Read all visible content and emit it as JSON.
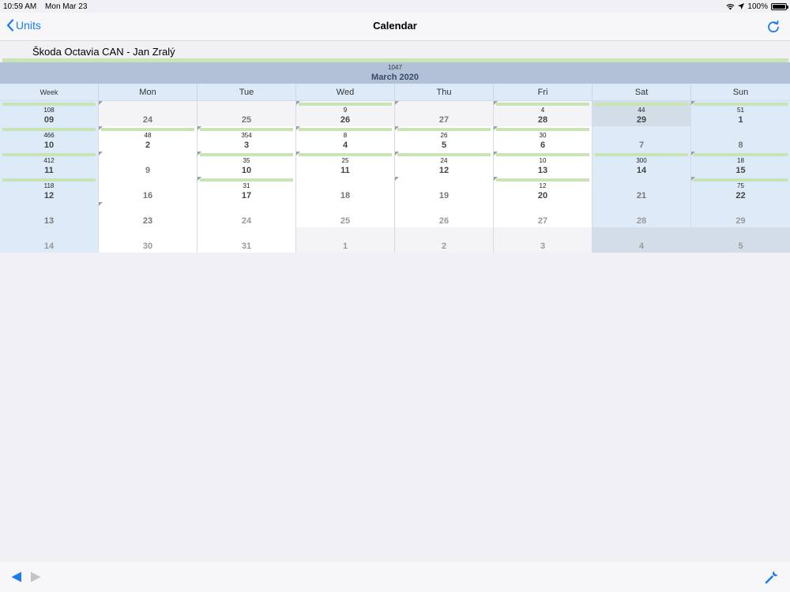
{
  "status": {
    "time": "10:59 AM",
    "date": "Mon Mar 23",
    "battery": "100%",
    "battery_level": 1.0
  },
  "nav": {
    "back_label": "Units",
    "title": "Calendar"
  },
  "unit": {
    "name": "Škoda Octavia CAN - Jan Zralý"
  },
  "month": {
    "total": "1047",
    "title": "March 2020"
  },
  "days_of_week": [
    "Week",
    "Mon",
    "Tue",
    "Wed",
    "Thu",
    "Fri",
    "Sat",
    "Sun"
  ],
  "weeks": [
    {
      "cells": [
        {
          "kind": "week",
          "day": "09",
          "count": "108",
          "bar": true
        },
        {
          "kind": "other",
          "day": "24",
          "count": "",
          "bar": false,
          "corner": true,
          "style": "muted"
        },
        {
          "kind": "other",
          "day": "25",
          "count": "",
          "bar": false,
          "style": "muted"
        },
        {
          "kind": "other",
          "day": "26",
          "count": "9",
          "bar": true,
          "corner": true
        },
        {
          "kind": "other",
          "day": "27",
          "count": "",
          "bar": false,
          "corner": true,
          "style": "muted"
        },
        {
          "kind": "other",
          "day": "28",
          "count": "4",
          "bar": true,
          "corner": true
        },
        {
          "kind": "other-weekend",
          "day": "29",
          "count": "44",
          "bar": true
        },
        {
          "kind": "weekend",
          "day": "1",
          "count": "51",
          "bar": true,
          "corner": true
        }
      ]
    },
    {
      "cells": [
        {
          "kind": "week",
          "day": "10",
          "count": "466",
          "bar": true
        },
        {
          "kind": "weekday",
          "day": "2",
          "count": "48",
          "bar": true,
          "corner": true
        },
        {
          "kind": "weekday",
          "day": "3",
          "count": "354",
          "bar": true,
          "corner": true
        },
        {
          "kind": "weekday",
          "day": "4",
          "count": "8",
          "bar": true,
          "corner": true
        },
        {
          "kind": "weekday",
          "day": "5",
          "count": "26",
          "bar": true,
          "corner": true
        },
        {
          "kind": "weekday",
          "day": "6",
          "count": "30",
          "bar": true,
          "corner": true
        },
        {
          "kind": "weekend",
          "day": "7",
          "count": "",
          "bar": false,
          "style": "muted"
        },
        {
          "kind": "weekend",
          "day": "8",
          "count": "",
          "bar": false,
          "style": "muted"
        }
      ]
    },
    {
      "cells": [
        {
          "kind": "week",
          "day": "11",
          "count": "412",
          "bar": true
        },
        {
          "kind": "weekday",
          "day": "9",
          "count": "",
          "bar": false,
          "corner": true,
          "style": "muted"
        },
        {
          "kind": "weekday",
          "day": "10",
          "count": "35",
          "bar": true,
          "corner": true
        },
        {
          "kind": "weekday",
          "day": "11",
          "count": "25",
          "bar": true,
          "corner": true
        },
        {
          "kind": "weekday",
          "day": "12",
          "count": "24",
          "bar": true,
          "corner": true
        },
        {
          "kind": "weekday",
          "day": "13",
          "count": "10",
          "bar": true,
          "corner": true
        },
        {
          "kind": "weekend",
          "day": "14",
          "count": "300",
          "bar": true
        },
        {
          "kind": "weekend",
          "day": "15",
          "count": "18",
          "bar": true,
          "corner": true
        }
      ]
    },
    {
      "cells": [
        {
          "kind": "week",
          "day": "12",
          "count": "118",
          "bar": true
        },
        {
          "kind": "weekday",
          "day": "16",
          "count": "",
          "bar": false,
          "style": "muted"
        },
        {
          "kind": "weekday",
          "day": "17",
          "count": "31",
          "bar": true,
          "corner": true
        },
        {
          "kind": "weekday",
          "day": "18",
          "count": "",
          "bar": false,
          "style": "muted"
        },
        {
          "kind": "weekday",
          "day": "19",
          "count": "",
          "bar": false,
          "corner": true,
          "style": "muted"
        },
        {
          "kind": "weekday",
          "day": "20",
          "count": "12",
          "bar": true,
          "corner": true
        },
        {
          "kind": "weekend",
          "day": "21",
          "count": "",
          "bar": false,
          "style": "muted"
        },
        {
          "kind": "weekend",
          "day": "22",
          "count": "75",
          "bar": true,
          "corner": true
        }
      ]
    },
    {
      "cells": [
        {
          "kind": "week",
          "day": "13",
          "count": "",
          "bar": false,
          "style": "muted"
        },
        {
          "kind": "weekday",
          "day": "23",
          "count": "",
          "bar": false,
          "corner": true,
          "style": "muted"
        },
        {
          "kind": "weekday",
          "day": "24",
          "count": "",
          "bar": false,
          "style": "dim"
        },
        {
          "kind": "weekday",
          "day": "25",
          "count": "",
          "bar": false,
          "style": "dim"
        },
        {
          "kind": "weekday",
          "day": "26",
          "count": "",
          "bar": false,
          "style": "dim"
        },
        {
          "kind": "weekday",
          "day": "27",
          "count": "",
          "bar": false,
          "style": "dim"
        },
        {
          "kind": "weekend",
          "day": "28",
          "count": "",
          "bar": false,
          "style": "dim"
        },
        {
          "kind": "weekend",
          "day": "29",
          "count": "",
          "bar": false,
          "style": "dim"
        }
      ]
    },
    {
      "cells": [
        {
          "kind": "week",
          "day": "14",
          "count": "",
          "bar": false,
          "style": "dim"
        },
        {
          "kind": "weekday",
          "day": "30",
          "count": "",
          "bar": false,
          "style": "dim"
        },
        {
          "kind": "weekday",
          "day": "31",
          "count": "",
          "bar": false,
          "style": "dim"
        },
        {
          "kind": "other",
          "day": "1",
          "count": "",
          "bar": false,
          "style": "dim"
        },
        {
          "kind": "other",
          "day": "2",
          "count": "",
          "bar": false,
          "style": "dim"
        },
        {
          "kind": "other",
          "day": "3",
          "count": "",
          "bar": false,
          "style": "dim"
        },
        {
          "kind": "other-weekend",
          "day": "4",
          "count": "",
          "bar": false,
          "style": "dim"
        },
        {
          "kind": "other-weekend",
          "day": "5",
          "count": "",
          "bar": false,
          "style": "dim"
        }
      ]
    }
  ],
  "icons": {
    "back": "chevron-left-icon",
    "refresh": "refresh-icon",
    "prev": "triangle-left-icon",
    "next": "triangle-right-icon",
    "settings": "wrench-icon"
  },
  "colors": {
    "accent": "#1a7cf0",
    "bar": "#c8e4b4",
    "header": "#b2c0d8",
    "weekend": "#ddebf8"
  }
}
